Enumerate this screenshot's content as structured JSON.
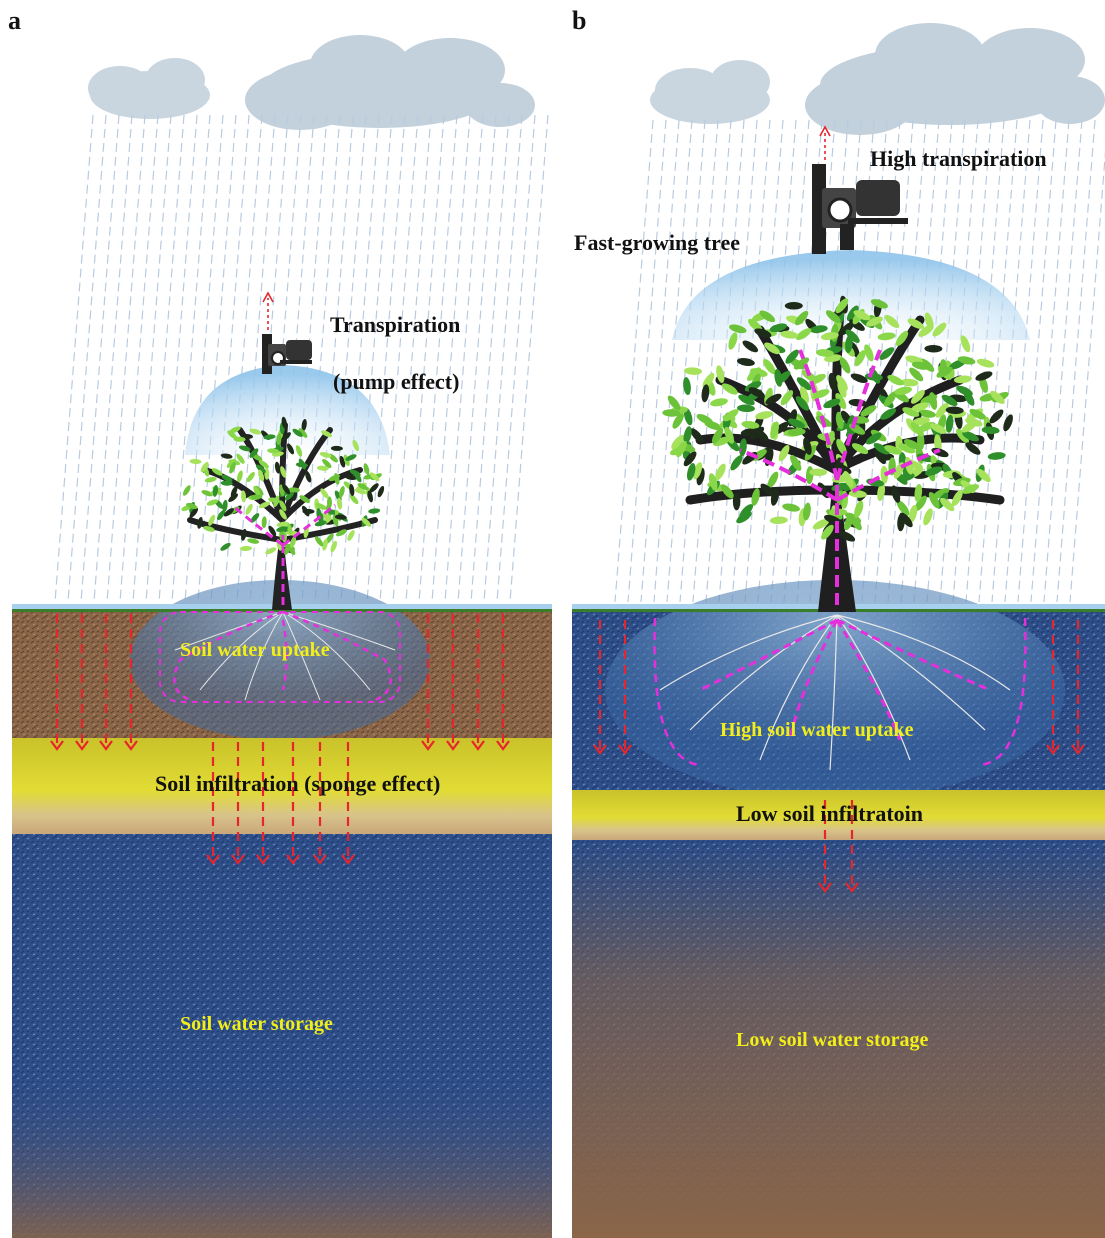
{
  "panels": [
    {
      "letter": "a",
      "labels": {
        "transpiration": "Transpiration",
        "pump": "(pump effect)",
        "uptake": "Soil water uptake",
        "infiltration": "Soil infiltration (sponge effect)",
        "storage": "Soil water storage"
      }
    },
    {
      "letter": "b",
      "labels": {
        "transpiration": "High transpiration",
        "tree": "Fast-growing tree",
        "uptake": "High soil water uptake",
        "infiltration": "Low soil infiltratoin",
        "storage": "Low soil water storage"
      }
    }
  ],
  "colors": {
    "rain": "#b9cbe0",
    "arrow_red": "#e8242c",
    "flow_magenta": "#e52fdc",
    "label_yellow": "#f2ee1a",
    "label_black": "#111111",
    "soil_brown": "#8a6548",
    "soil_blue": "#2e4f8a",
    "sponge_yellow": "#d9d430",
    "canopy_blue": "#9fcdee",
    "leaf_green": "#6cc33a",
    "cloud": "#c9d6e0"
  }
}
